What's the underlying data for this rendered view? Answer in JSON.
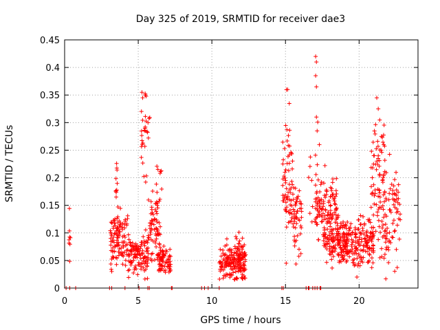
{
  "chart_data": {
    "type": "scatter",
    "title": "Day 325 of 2019, SRMTID for receiver dae3",
    "xlabel": "GPS time / hours",
    "ylabel": "SRMTID / TECUs",
    "xlim": [
      0,
      24
    ],
    "ylim": [
      0,
      0.45
    ],
    "grid": true,
    "marker": "+",
    "color": "#ff0000",
    "xticks": [
      {
        "v": 0,
        "label": "0"
      },
      {
        "v": 5,
        "label": "5"
      },
      {
        "v": 10,
        "label": "10"
      },
      {
        "v": 15,
        "label": "15"
      },
      {
        "v": 20,
        "label": "20"
      }
    ],
    "yticks": [
      {
        "v": 0,
        "label": "0"
      },
      {
        "v": 0.05,
        "label": "0.05"
      },
      {
        "v": 0.1,
        "label": "0.1"
      },
      {
        "v": 0.15,
        "label": "0.15"
      },
      {
        "v": 0.2,
        "label": "0.2"
      },
      {
        "v": 0.25,
        "label": "0.25"
      },
      {
        "v": 0.3,
        "label": "0.3"
      },
      {
        "v": 0.35,
        "label": "0.35"
      },
      {
        "v": 0.4,
        "label": "0.4"
      },
      {
        "v": 0.45,
        "label": "0.45"
      }
    ],
    "clusters": [
      {
        "x_range": [
          0.25,
          0.4
        ],
        "y_mean": 0.09,
        "y_spread": 0.02,
        "n": 8
      },
      {
        "x_range": [
          3.1,
          4.3
        ],
        "y_mean": 0.09,
        "y_spread": 0.025,
        "n": 110
      },
      {
        "x_range": [
          3.4,
          3.6
        ],
        "y_mean": 0.17,
        "y_spread": 0.025,
        "n": 10
      },
      {
        "x_range": [
          4.3,
          5.7
        ],
        "y_mean": 0.06,
        "y_spread": 0.018,
        "n": 120
      },
      {
        "x_range": [
          5.2,
          5.8
        ],
        "y_mean": 0.26,
        "y_spread": 0.05,
        "n": 30
      },
      {
        "x_range": [
          5.7,
          6.5
        ],
        "y_mean": 0.11,
        "y_spread": 0.035,
        "n": 70
      },
      {
        "x_range": [
          6.2,
          6.6
        ],
        "y_mean": 0.19,
        "y_spread": 0.03,
        "n": 10
      },
      {
        "x_range": [
          6.4,
          7.2
        ],
        "y_mean": 0.05,
        "y_spread": 0.012,
        "n": 70
      },
      {
        "x_range": [
          10.5,
          12.3
        ],
        "y_mean": 0.045,
        "y_spread": 0.015,
        "n": 170
      },
      {
        "x_range": [
          11.6,
          12.3
        ],
        "y_mean": 0.075,
        "y_spread": 0.013,
        "n": 30
      },
      {
        "x_range": [
          14.8,
          15.5
        ],
        "y_mean": 0.19,
        "y_spread": 0.04,
        "n": 60
      },
      {
        "x_range": [
          15.0,
          15.3
        ],
        "y_mean": 0.3,
        "y_spread": 0.03,
        "n": 8
      },
      {
        "x_range": [
          15.5,
          16.1
        ],
        "y_mean": 0.13,
        "y_spread": 0.03,
        "n": 50
      },
      {
        "x_range": [
          16.5,
          17.3
        ],
        "y_mean": 0.19,
        "y_spread": 0.05,
        "n": 15
      },
      {
        "x_range": [
          17.0,
          18.5
        ],
        "y_mean": 0.14,
        "y_spread": 0.03,
        "n": 120
      },
      {
        "x_range": [
          17.6,
          19.2
        ],
        "y_mean": 0.08,
        "y_spread": 0.02,
        "n": 90
      },
      {
        "x_range": [
          18.5,
          21.0
        ],
        "y_mean": 0.085,
        "y_spread": 0.022,
        "n": 220
      },
      {
        "x_range": [
          20.8,
          21.8
        ],
        "y_mean": 0.2,
        "y_spread": 0.06,
        "n": 70
      },
      {
        "x_range": [
          21.3,
          22.8
        ],
        "y_mean": 0.14,
        "y_spread": 0.05,
        "n": 90
      }
    ],
    "outliers": [
      {
        "x": 17.05,
        "y": 0.42
      },
      {
        "x": 17.1,
        "y": 0.41
      },
      {
        "x": 17.05,
        "y": 0.385
      },
      {
        "x": 17.1,
        "y": 0.365
      },
      {
        "x": 17.1,
        "y": 0.31
      },
      {
        "x": 17.15,
        "y": 0.285
      },
      {
        "x": 15.15,
        "y": 0.36
      },
      {
        "x": 5.25,
        "y": 0.355
      },
      {
        "x": 5.3,
        "y": 0.345
      },
      {
        "x": 21.2,
        "y": 0.345
      },
      {
        "x": 21.3,
        "y": 0.325
      },
      {
        "x": 15.05,
        "y": 0.045
      },
      {
        "x": 3.2,
        "y": 0.03
      },
      {
        "x": 19.85,
        "y": 0.02
      },
      {
        "x": 16.8,
        "y": 0.12
      },
      {
        "x": 7.25,
        "y": 0.0
      }
    ],
    "zero_points": [
      0.1,
      0.35,
      0.75,
      3.05,
      3.2,
      4.1,
      5.05,
      5.65,
      5.75,
      7.3,
      9.3,
      9.5,
      9.75,
      10.5,
      14.75,
      14.85,
      16.4,
      16.55,
      16.6,
      16.85,
      17.0,
      17.15,
      17.35,
      17.4
    ]
  }
}
